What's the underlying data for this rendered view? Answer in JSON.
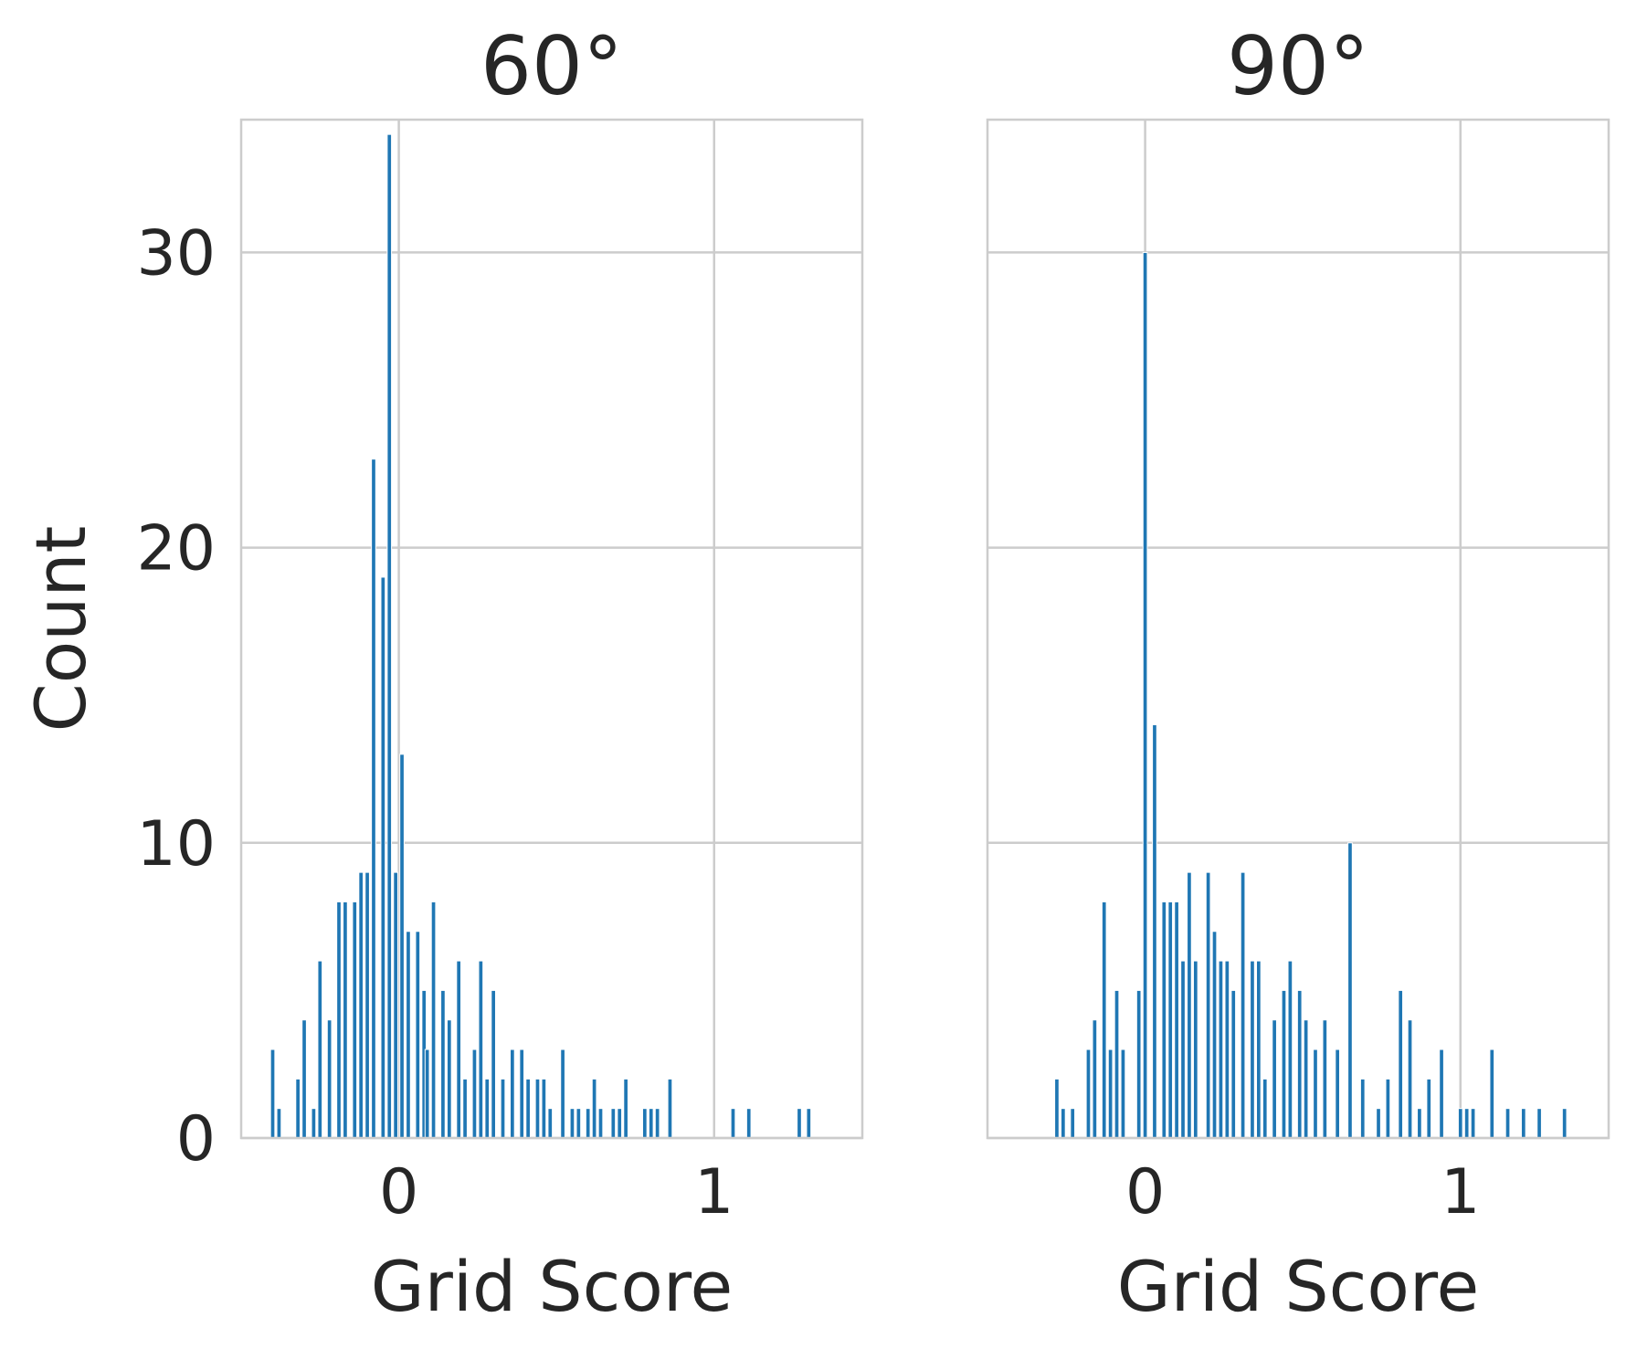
{
  "chart_data": [
    {
      "type": "bar",
      "title": "60°",
      "xlabel": "Grid Score",
      "ylabel": "Count",
      "xlim": [
        -0.5,
        1.47
      ],
      "ylim": [
        0,
        34.5
      ],
      "xticks": [
        "0",
        "1"
      ],
      "yticks": [
        "0",
        "10",
        "20",
        "30"
      ],
      "grid": true,
      "color": "#1f77b4",
      "bin_width": 0.0136,
      "x": [
        -0.4,
        -0.38,
        -0.32,
        -0.3,
        -0.27,
        -0.25,
        -0.22,
        -0.19,
        -0.17,
        -0.14,
        -0.12,
        -0.1,
        -0.08,
        -0.05,
        -0.03,
        -0.01,
        0.01,
        0.03,
        0.06,
        0.08,
        0.09,
        0.11,
        0.14,
        0.16,
        0.19,
        0.21,
        0.24,
        0.26,
        0.28,
        0.3,
        0.33,
        0.36,
        0.39,
        0.41,
        0.44,
        0.46,
        0.48,
        0.52,
        0.55,
        0.57,
        0.6,
        0.62,
        0.64,
        0.68,
        0.7,
        0.72,
        0.78,
        0.8,
        0.82,
        0.86,
        1.06,
        1.11,
        1.27,
        1.3
      ],
      "values": [
        3,
        1,
        2,
        4,
        1,
        6,
        4,
        8,
        8,
        8,
        9,
        9,
        23,
        19,
        34,
        9,
        13,
        7,
        7,
        5,
        3,
        8,
        5,
        4,
        6,
        2,
        3,
        6,
        2,
        5,
        2,
        3,
        3,
        2,
        2,
        2,
        1,
        3,
        1,
        1,
        1,
        2,
        1,
        1,
        1,
        2,
        1,
        1,
        1,
        2,
        1,
        1,
        1,
        1
      ]
    },
    {
      "type": "bar",
      "title": "90°",
      "xlabel": "Grid Score",
      "ylabel": "",
      "xlim": [
        -0.5,
        1.47
      ],
      "ylim": [
        0,
        34.5
      ],
      "xticks": [
        "0",
        "1"
      ],
      "yticks": [
        "0",
        "10",
        "20",
        "30"
      ],
      "grid": true,
      "color": "#1f77b4",
      "bin_width": 0.0136,
      "x": [
        -0.28,
        -0.26,
        -0.23,
        -0.18,
        -0.16,
        -0.13,
        -0.11,
        -0.09,
        -0.07,
        -0.02,
        0.0,
        0.03,
        0.06,
        0.08,
        0.1,
        0.12,
        0.14,
        0.16,
        0.2,
        0.22,
        0.24,
        0.26,
        0.28,
        0.31,
        0.34,
        0.36,
        0.38,
        0.41,
        0.44,
        0.46,
        0.49,
        0.51,
        0.54,
        0.57,
        0.61,
        0.65,
        0.69,
        0.74,
        0.77,
        0.81,
        0.84,
        0.87,
        0.9,
        0.94,
        1.0,
        1.02,
        1.04,
        1.1,
        1.15,
        1.2,
        1.25,
        1.33
      ],
      "values": [
        2,
        1,
        1,
        3,
        4,
        8,
        3,
        5,
        3,
        5,
        30,
        14,
        8,
        8,
        8,
        6,
        9,
        6,
        9,
        7,
        6,
        6,
        5,
        9,
        6,
        6,
        2,
        4,
        5,
        6,
        5,
        4,
        3,
        4,
        3,
        10,
        2,
        1,
        2,
        5,
        4,
        1,
        2,
        3,
        1,
        1,
        1,
        3,
        1,
        1,
        1,
        1
      ]
    }
  ]
}
